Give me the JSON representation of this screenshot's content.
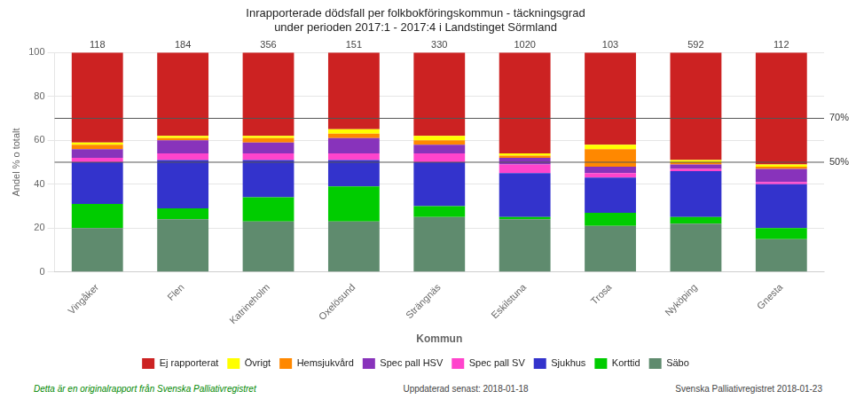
{
  "chart_data": {
    "type": "bar",
    "title": "Inrapporterade dödsfall per folkbokföringskommun - täckningsgrad\nunder perioden 2017:1 - 2017:4 i Landstinget Sörmland",
    "x_label": "Kommun",
    "y_label": "Andel % o totalt",
    "categories": [
      "Vingåker",
      "Flen",
      "Katrineholm",
      "Oxelösund",
      "Strängnäs",
      "Eskilstuna",
      "Trosa",
      "Nyköping",
      "Gnesta"
    ],
    "series": [
      {
        "name": "Säbo",
        "color": "#5f8b6e",
        "values": [
          20,
          24,
          23,
          23,
          25,
          24,
          21,
          22,
          15
        ]
      },
      {
        "name": "Korttid",
        "color": "#00cc00",
        "values": [
          11,
          5,
          11,
          16,
          5,
          1,
          6,
          3,
          5
        ]
      },
      {
        "name": "Sjukhus",
        "color": "#3333cc",
        "values": [
          19,
          22,
          17,
          12,
          20,
          20,
          16,
          21,
          20
        ]
      },
      {
        "name": "Spec pall SV",
        "color": "#ff44cc",
        "values": [
          2,
          3,
          3,
          3,
          4,
          4,
          2,
          1,
          1
        ]
      },
      {
        "name": "Spec pall HSV",
        "color": "#8833bb",
        "values": [
          4,
          6,
          5,
          7,
          4,
          3,
          3,
          2,
          6
        ]
      },
      {
        "name": "Hemsjukvård",
        "color": "#ff8800",
        "values": [
          2,
          1,
          2,
          2,
          2,
          1,
          8,
          1,
          1
        ]
      },
      {
        "name": "Övrigt",
        "color": "#ffff00",
        "values": [
          1,
          1,
          1,
          2,
          2,
          1,
          2,
          1,
          1
        ]
      },
      {
        "name": "Ej rapporterat",
        "color": "#cc2222",
        "values": [
          41,
          38,
          38,
          35,
          38,
          46,
          42,
          49,
          51
        ]
      }
    ],
    "totals": [
      118,
      184,
      356,
      151,
      330,
      1020,
      103,
      592,
      112
    ],
    "reference_lines": [
      {
        "value": 50,
        "label": "50%"
      },
      {
        "value": 70,
        "label": "70%"
      }
    ],
    "footnotes": [
      "Detta är en originalrapport från Svenska Palliativregistret",
      "Uppdaterad senast:  2018-01-18",
      "Svenska Palliativregistret 2018-01-23"
    ],
    "stacked": true,
    "ylim": [
      0,
      100
    ],
    "yticks": [
      0,
      20,
      40,
      60,
      80,
      100
    ],
    "grid": true,
    "legend": "bottom"
  }
}
